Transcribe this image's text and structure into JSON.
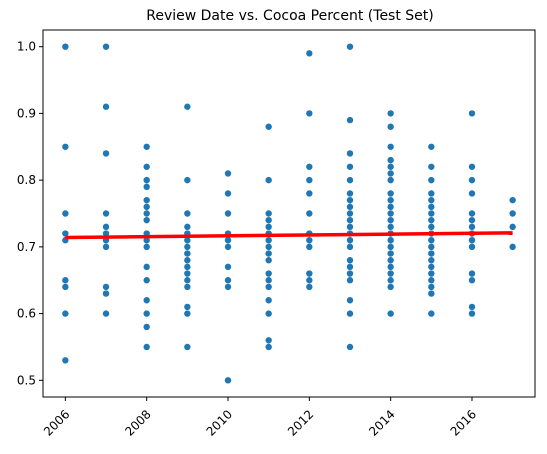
{
  "chart_data": {
    "type": "scatter",
    "title": "Review Date vs. Cocoa Percent (Test Set)",
    "xlabel": "",
    "ylabel": "",
    "xlim": [
      2005.45,
      2017.55
    ],
    "ylim": [
      0.475,
      1.025
    ],
    "xticks": [
      "2006",
      "2008",
      "2010",
      "2012",
      "2014",
      "2016"
    ],
    "xtick_values": [
      2006,
      2008,
      2010,
      2012,
      2014,
      2016
    ],
    "xtick_rotation": 45,
    "yticks": [
      "0.5",
      "0.6",
      "0.7",
      "0.8",
      "0.9",
      "1.0"
    ],
    "ytick_values": [
      0.5,
      0.6,
      0.7,
      0.8,
      0.9,
      1.0
    ],
    "grid": false,
    "point_color": "#1f77b4",
    "line_color": "#ff0000",
    "points_by_year": [
      {
        "x": 2006,
        "y": [
          1.0,
          0.85,
          0.75,
          0.72,
          0.71,
          0.65,
          0.64,
          0.6,
          0.53
        ]
      },
      {
        "x": 2007,
        "y": [
          1.0,
          0.91,
          0.84,
          0.75,
          0.73,
          0.72,
          0.71,
          0.7,
          0.64,
          0.63,
          0.6
        ]
      },
      {
        "x": 2008,
        "y": [
          0.85,
          0.82,
          0.8,
          0.79,
          0.77,
          0.76,
          0.75,
          0.74,
          0.72,
          0.71,
          0.7,
          0.67,
          0.65,
          0.62,
          0.6,
          0.58,
          0.55
        ]
      },
      {
        "x": 2009,
        "y": [
          0.91,
          0.8,
          0.75,
          0.73,
          0.72,
          0.71,
          0.7,
          0.69,
          0.68,
          0.67,
          0.66,
          0.65,
          0.64,
          0.61,
          0.6,
          0.55
        ]
      },
      {
        "x": 2010,
        "y": [
          0.81,
          0.78,
          0.75,
          0.72,
          0.71,
          0.7,
          0.67,
          0.65,
          0.64,
          0.5
        ]
      },
      {
        "x": 2011,
        "y": [
          0.88,
          0.8,
          0.75,
          0.74,
          0.73,
          0.72,
          0.71,
          0.7,
          0.69,
          0.68,
          0.66,
          0.65,
          0.64,
          0.62,
          0.6,
          0.56,
          0.55
        ]
      },
      {
        "x": 2012,
        "y": [
          0.99,
          0.9,
          0.82,
          0.8,
          0.78,
          0.75,
          0.72,
          0.71,
          0.7,
          0.66,
          0.65,
          0.64
        ]
      },
      {
        "x": 2013,
        "y": [
          1.0,
          0.89,
          0.84,
          0.82,
          0.8,
          0.78,
          0.77,
          0.76,
          0.75,
          0.74,
          0.73,
          0.72,
          0.71,
          0.7,
          0.68,
          0.67,
          0.66,
          0.65,
          0.62,
          0.6,
          0.55
        ]
      },
      {
        "x": 2014,
        "y": [
          0.9,
          0.88,
          0.85,
          0.83,
          0.82,
          0.81,
          0.8,
          0.78,
          0.77,
          0.76,
          0.75,
          0.74,
          0.73,
          0.72,
          0.71,
          0.7,
          0.69,
          0.68,
          0.67,
          0.66,
          0.65,
          0.64,
          0.6
        ]
      },
      {
        "x": 2015,
        "y": [
          0.85,
          0.82,
          0.8,
          0.78,
          0.77,
          0.76,
          0.75,
          0.74,
          0.73,
          0.72,
          0.71,
          0.7,
          0.69,
          0.68,
          0.67,
          0.66,
          0.65,
          0.64,
          0.63,
          0.6
        ]
      },
      {
        "x": 2016,
        "y": [
          0.9,
          0.82,
          0.8,
          0.78,
          0.75,
          0.74,
          0.73,
          0.72,
          0.71,
          0.7,
          0.66,
          0.65,
          0.61,
          0.6
        ]
      },
      {
        "x": 2017,
        "y": [
          0.77,
          0.75,
          0.73,
          0.7
        ]
      }
    ],
    "regression_line": {
      "x": [
        2006,
        2017
      ],
      "y": [
        0.714,
        0.721
      ]
    }
  }
}
